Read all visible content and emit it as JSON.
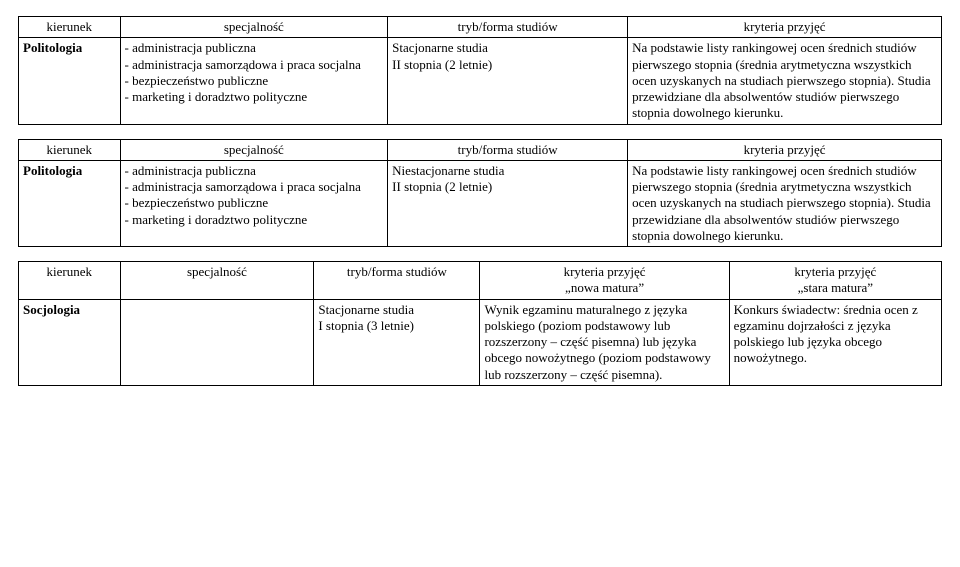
{
  "headers": {
    "kierunek": "kierunek",
    "specjalnosc": "specjalność",
    "tryb": "tryb/forma studiów",
    "kryteria": "kryteria przyjęć",
    "kryteria_nowa": "kryteria przyjęć\n„nowa matura”",
    "kryteria_stara": "kryteria przyjęć\n„stara matura”"
  },
  "row1": {
    "kierunek": "Politologia",
    "spec": "- administracja publiczna\n- administracja samorządowa i praca socjalna\n- bezpieczeństwo publiczne\n- marketing i doradztwo polityczne",
    "tryb": "Stacjonarne studia\nII stopnia (2 letnie)",
    "kryt": "Na podstawie listy rankingowej ocen średnich studiów pierwszego stopnia (średnia arytmetyczna wszystkich ocen uzyskanych na studiach pierwszego stopnia). Studia przewidziane dla absolwentów studiów pierwszego stopnia dowolnego kierunku."
  },
  "row2": {
    "kierunek": "Politologia",
    "spec": "- administracja publiczna\n- administracja samorządowa i praca socjalna\n- bezpieczeństwo publiczne\n- marketing i doradztwo polityczne",
    "tryb": "Niestacjonarne studia\nII stopnia (2 letnie)",
    "kryt": "Na podstawie listy rankingowej ocen średnich studiów pierwszego stopnia (średnia arytmetyczna wszystkich ocen uzyskanych na studiach pierwszego stopnia). Studia przewidziane dla absolwentów studiów pierwszego stopnia dowolnego kierunku."
  },
  "row3": {
    "kierunek": "Socjologia",
    "spec": "",
    "tryb": "Stacjonarne studia\nI stopnia (3 letnie)",
    "kryt_nowa": "Wynik egzaminu maturalnego z języka polskiego (poziom podstawowy lub rozszerzony – część pisemna) lub języka obcego nowożytnego (poziom podstawowy lub rozszerzony – część pisemna).",
    "kryt_stara": "Konkurs świadectw: średnia ocen z egzaminu dojrzałości z języka polskiego lub języka obcego nowożytnego."
  }
}
